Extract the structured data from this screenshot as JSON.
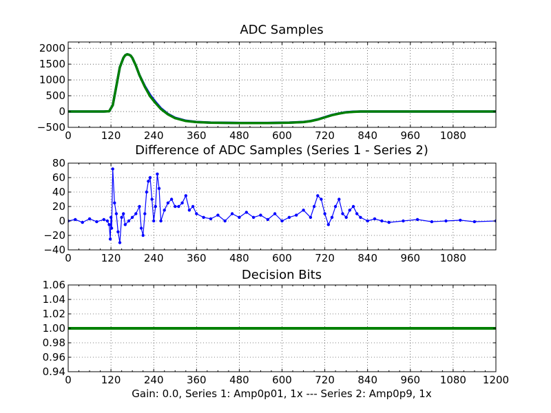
{
  "figure": {
    "xlabel": "Gain: 0.0, Series 1: Amp0p01, 1x --- Series 2: Amp0p9, 1x",
    "colors": {
      "series1": "#0000ff",
      "series2": "#008000",
      "grid": "#000000"
    }
  },
  "chart_data": [
    {
      "type": "line",
      "title": "ADC Samples",
      "xlim": [
        0,
        1200
      ],
      "ylim": [
        -500,
        2200
      ],
      "xticks": [
        "0",
        "120",
        "240",
        "360",
        "480",
        "600",
        "720",
        "840",
        "960",
        "1080"
      ],
      "yticks": [
        "−500",
        "0",
        "500",
        "1000",
        "1500",
        "2000"
      ],
      "grid": true,
      "x": [
        0,
        100,
        115,
        125,
        135,
        145,
        155,
        160,
        165,
        170,
        175,
        180,
        190,
        200,
        215,
        230,
        245,
        260,
        280,
        300,
        330,
        360,
        400,
        480,
        560,
        620,
        660,
        680,
        700,
        720,
        740,
        760,
        780,
        800,
        820,
        840,
        1200
      ],
      "series": [
        {
          "name": "Series 1",
          "color": "#0000ff",
          "values": [
            0,
            0,
            10,
            200,
            800,
            1400,
            1700,
            1780,
            1810,
            1800,
            1770,
            1700,
            1450,
            1150,
            800,
            520,
            300,
            100,
            -80,
            -200,
            -290,
            -330,
            -350,
            -360,
            -360,
            -350,
            -330,
            -300,
            -250,
            -180,
            -110,
            -60,
            -20,
            -5,
            0,
            0,
            0
          ]
        },
        {
          "name": "Series 2",
          "color": "#008000",
          "values": [
            0,
            0,
            10,
            200,
            800,
            1400,
            1700,
            1780,
            1810,
            1800,
            1770,
            1700,
            1450,
            1150,
            780,
            480,
            270,
            80,
            -90,
            -210,
            -300,
            -335,
            -355,
            -365,
            -365,
            -355,
            -335,
            -305,
            -255,
            -185,
            -115,
            -65,
            -25,
            -10,
            0,
            0,
            0
          ]
        }
      ]
    },
    {
      "type": "line",
      "title": "Difference of ADC Samples (Series 1 - Series 2)",
      "xlim": [
        0,
        1200
      ],
      "ylim": [
        -40,
        80
      ],
      "xticks": [
        "0",
        "120",
        "240",
        "360",
        "480",
        "600",
        "720",
        "840",
        "960",
        "1080"
      ],
      "yticks": [
        "−40",
        "−20",
        "0",
        "20",
        "40",
        "60",
        "80"
      ],
      "grid": true,
      "x": [
        0,
        20,
        40,
        60,
        80,
        100,
        110,
        115,
        118,
        120,
        122,
        125,
        130,
        135,
        140,
        145,
        150,
        155,
        160,
        170,
        180,
        190,
        200,
        205,
        210,
        215,
        220,
        225,
        230,
        235,
        240,
        245,
        250,
        255,
        260,
        270,
        280,
        290,
        300,
        310,
        320,
        330,
        340,
        350,
        360,
        380,
        400,
        420,
        440,
        460,
        480,
        500,
        520,
        540,
        560,
        580,
        600,
        620,
        640,
        660,
        680,
        690,
        700,
        710,
        720,
        730,
        740,
        750,
        760,
        770,
        780,
        790,
        800,
        810,
        820,
        840,
        860,
        880,
        900,
        940,
        980,
        1020,
        1060,
        1100,
        1140,
        1200
      ],
      "series": [
        {
          "name": "Difference",
          "color": "#0000ff",
          "values": [
            0,
            2,
            -2,
            3,
            -1,
            2,
            0,
            -5,
            -25,
            5,
            -10,
            72,
            25,
            10,
            -15,
            -30,
            5,
            10,
            -5,
            0,
            5,
            10,
            20,
            -10,
            -20,
            10,
            40,
            55,
            60,
            30,
            0,
            20,
            65,
            45,
            0,
            15,
            25,
            30,
            20,
            20,
            25,
            35,
            15,
            20,
            10,
            5,
            3,
            8,
            0,
            10,
            5,
            12,
            5,
            8,
            2,
            10,
            0,
            5,
            8,
            15,
            5,
            20,
            35,
            30,
            10,
            -5,
            5,
            20,
            30,
            10,
            5,
            15,
            20,
            10,
            5,
            0,
            3,
            0,
            -2,
            0,
            2,
            -1,
            0,
            1,
            -1,
            0
          ]
        }
      ]
    },
    {
      "type": "line",
      "title": "Decision Bits",
      "xlim": [
        0,
        1200
      ],
      "ylim": [
        0.94,
        1.06
      ],
      "xticks": [
        "0",
        "120",
        "240",
        "360",
        "480",
        "600",
        "720",
        "840",
        "960",
        "1080",
        "1200"
      ],
      "yticks": [
        "0.94",
        "0.96",
        "0.98",
        "1.00",
        "1.02",
        "1.04",
        "1.06"
      ],
      "grid": true,
      "x": [
        0,
        1200
      ],
      "series": [
        {
          "name": "Decision",
          "color": "#008000",
          "values": [
            1.0,
            1.0
          ]
        }
      ]
    }
  ]
}
